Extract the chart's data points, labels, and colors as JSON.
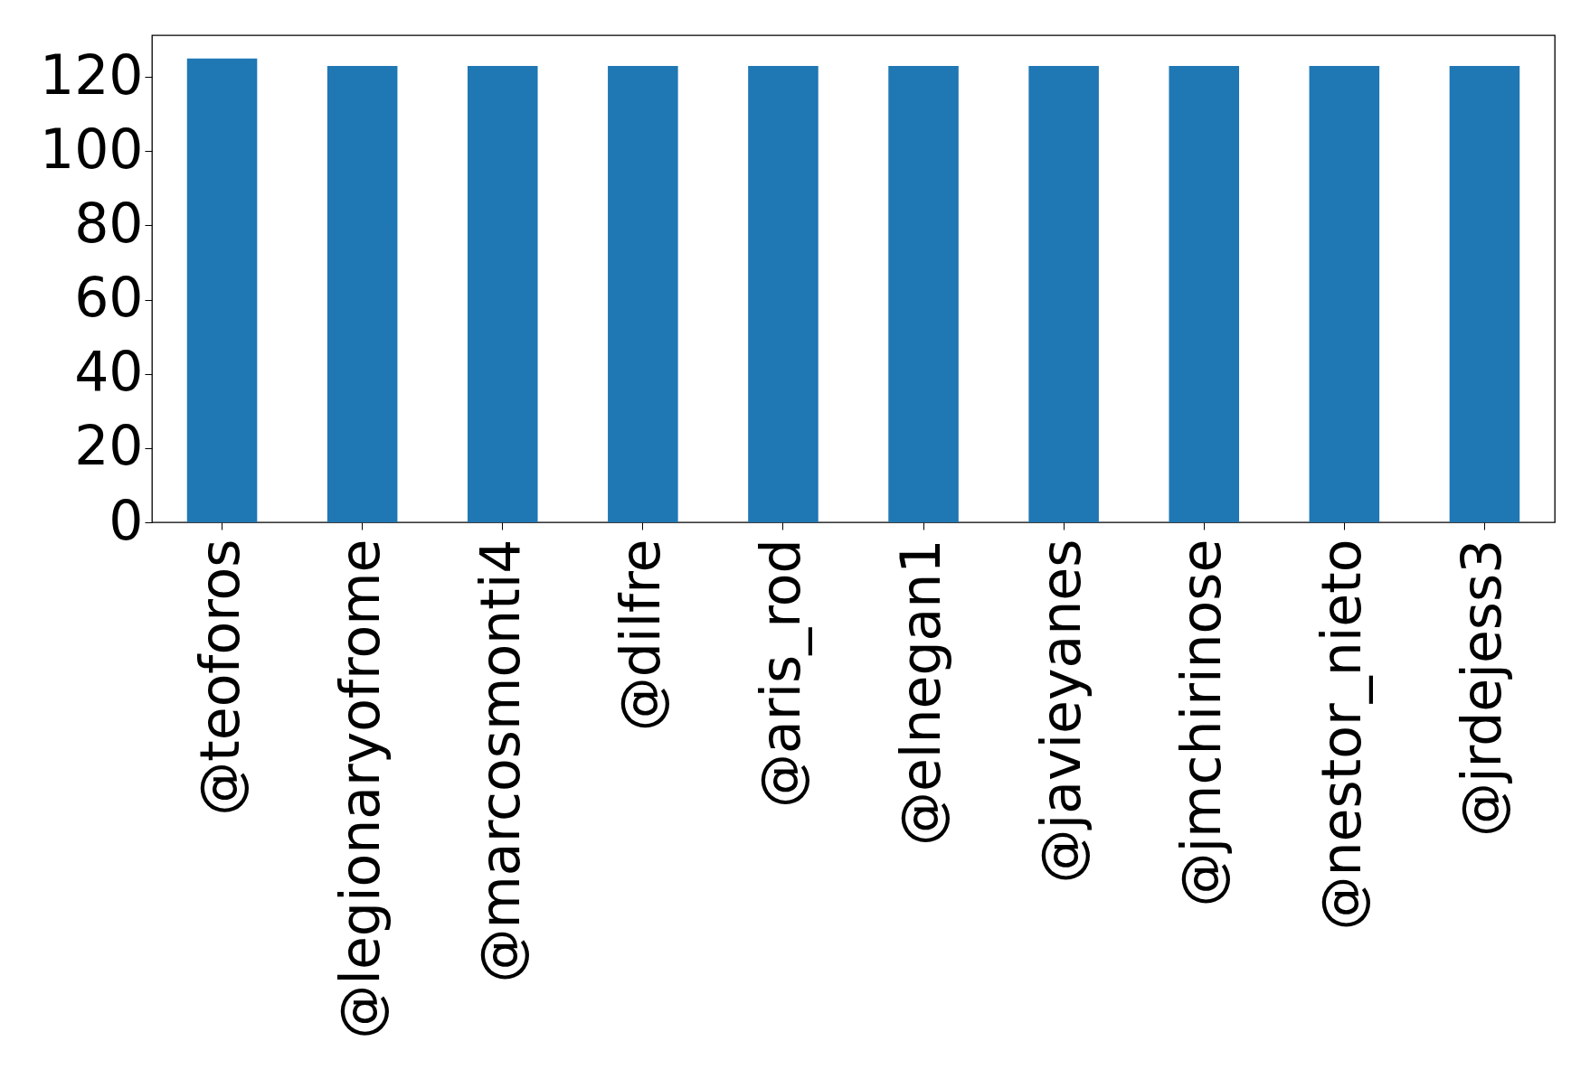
{
  "chart_data": {
    "type": "bar",
    "categories": [
      "@teoforos",
      "@legionaryofrome",
      "@marcosmonti4",
      "@dilfre",
      "@aris_rod",
      "@elnegan1",
      "@javieyanes",
      "@jmchirinose",
      "@nestor_nieto",
      "@jrdejess3"
    ],
    "values": [
      125,
      123,
      123,
      123,
      123,
      123,
      123,
      123,
      123,
      123
    ],
    "color": "#1f77b4",
    "ylim": [
      0,
      131.25
    ],
    "yticks": [
      0,
      20,
      40,
      60,
      80,
      100,
      120
    ],
    "grid": false
  }
}
